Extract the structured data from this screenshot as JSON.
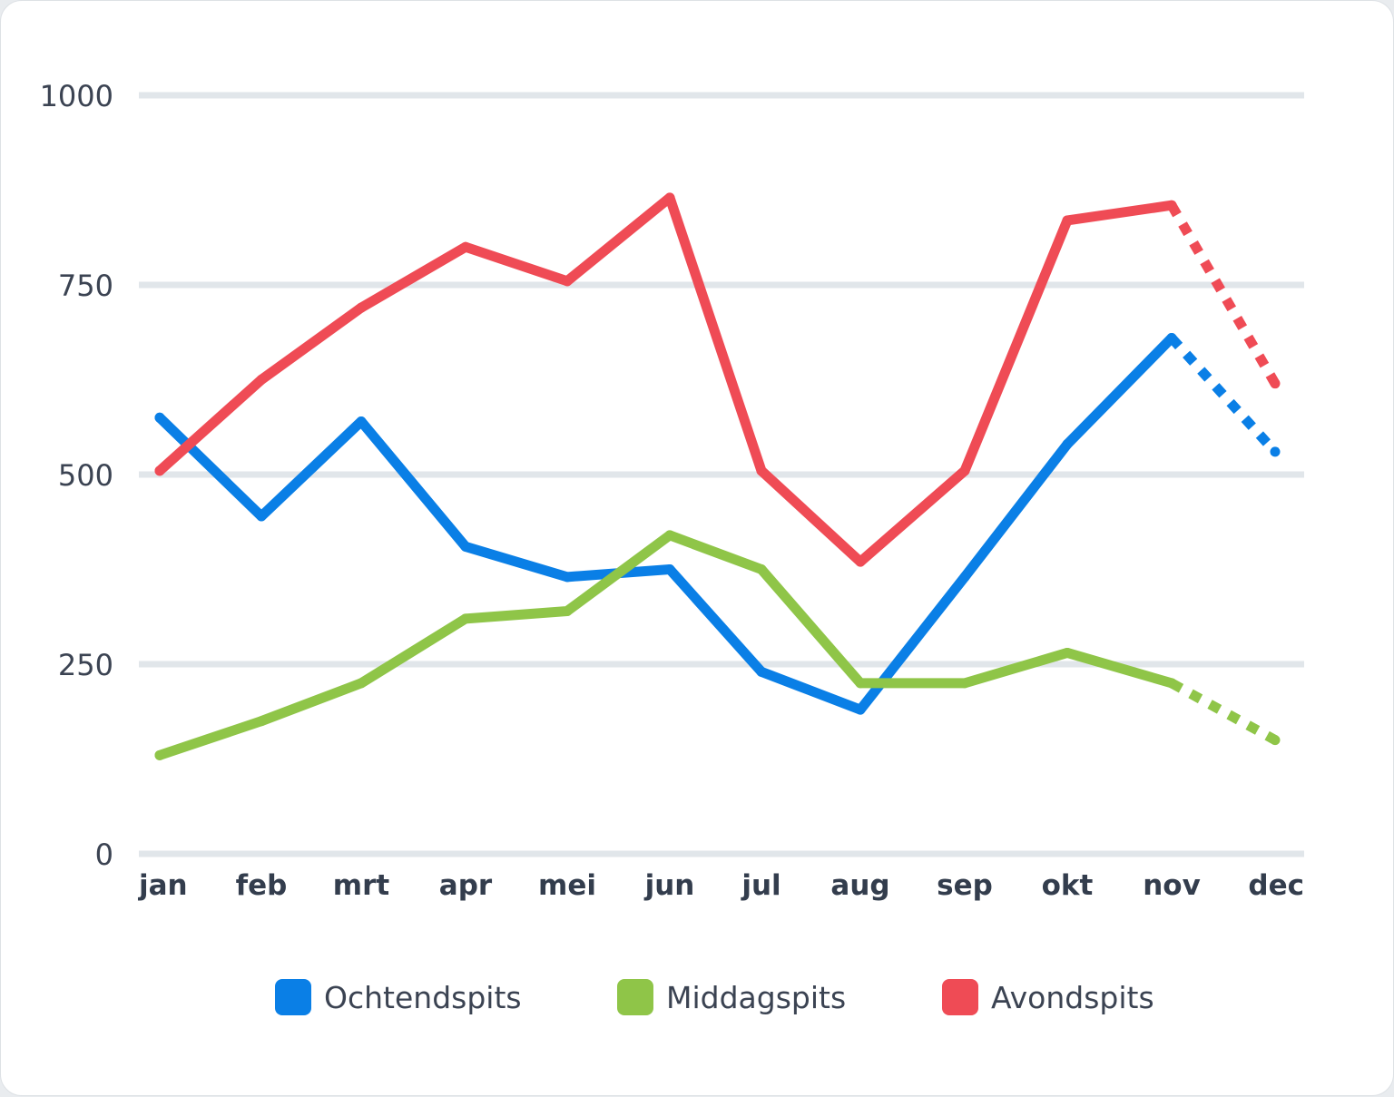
{
  "chart_data": {
    "type": "line",
    "categories": [
      "jan",
      "feb",
      "mrt",
      "apr",
      "mei",
      "jun",
      "jul",
      "aug",
      "sep",
      "okt",
      "nov",
      "dec"
    ],
    "yticks": [
      0,
      250,
      500,
      750,
      1000
    ],
    "ytick_labels": [
      "0",
      "250",
      "500",
      "750",
      "1000"
    ],
    "ylim": [
      0,
      1000
    ],
    "grid": true,
    "legend_position": "bottom",
    "projected_from_index": 10,
    "series": [
      {
        "name": "Ochtendspits",
        "color": "#0a7fe6",
        "values": [
          575,
          445,
          570,
          405,
          365,
          375,
          240,
          190,
          365,
          540,
          680,
          530
        ]
      },
      {
        "name": "Middagspits",
        "color": "#8fc548",
        "values": [
          130,
          175,
          225,
          310,
          320,
          420,
          375,
          225,
          225,
          265,
          225,
          150
        ]
      },
      {
        "name": "Avondspits",
        "color": "#ef4b55",
        "values": [
          505,
          625,
          720,
          800,
          755,
          865,
          505,
          385,
          505,
          835,
          855,
          620
        ]
      }
    ]
  }
}
